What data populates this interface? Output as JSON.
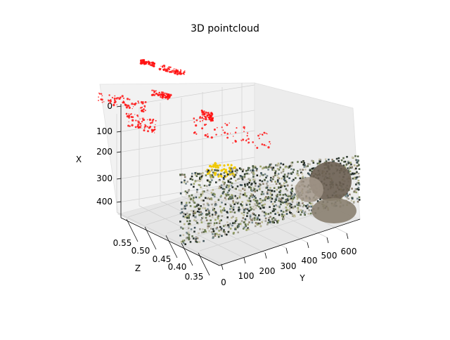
{
  "chart_data": {
    "type": "scatter",
    "projection": "3d",
    "title": "3D pointcloud",
    "xlabel": "X",
    "ylabel": "Y",
    "zlabel": "Z",
    "x_ticks": [
      "0",
      "100",
      "200",
      "300",
      "400"
    ],
    "y_ticks": [
      "0",
      "100",
      "200",
      "300",
      "400",
      "500",
      "600"
    ],
    "z_ticks": [
      "0.55",
      "0.50",
      "0.45",
      "0.40",
      "0.35"
    ],
    "grid": true,
    "series": [
      {
        "color": "#ff0000",
        "marker": "point"
      },
      {
        "color": "#ffd700",
        "marker": "point"
      },
      {
        "color": "multicolor-rgb",
        "marker": "point"
      }
    ]
  }
}
